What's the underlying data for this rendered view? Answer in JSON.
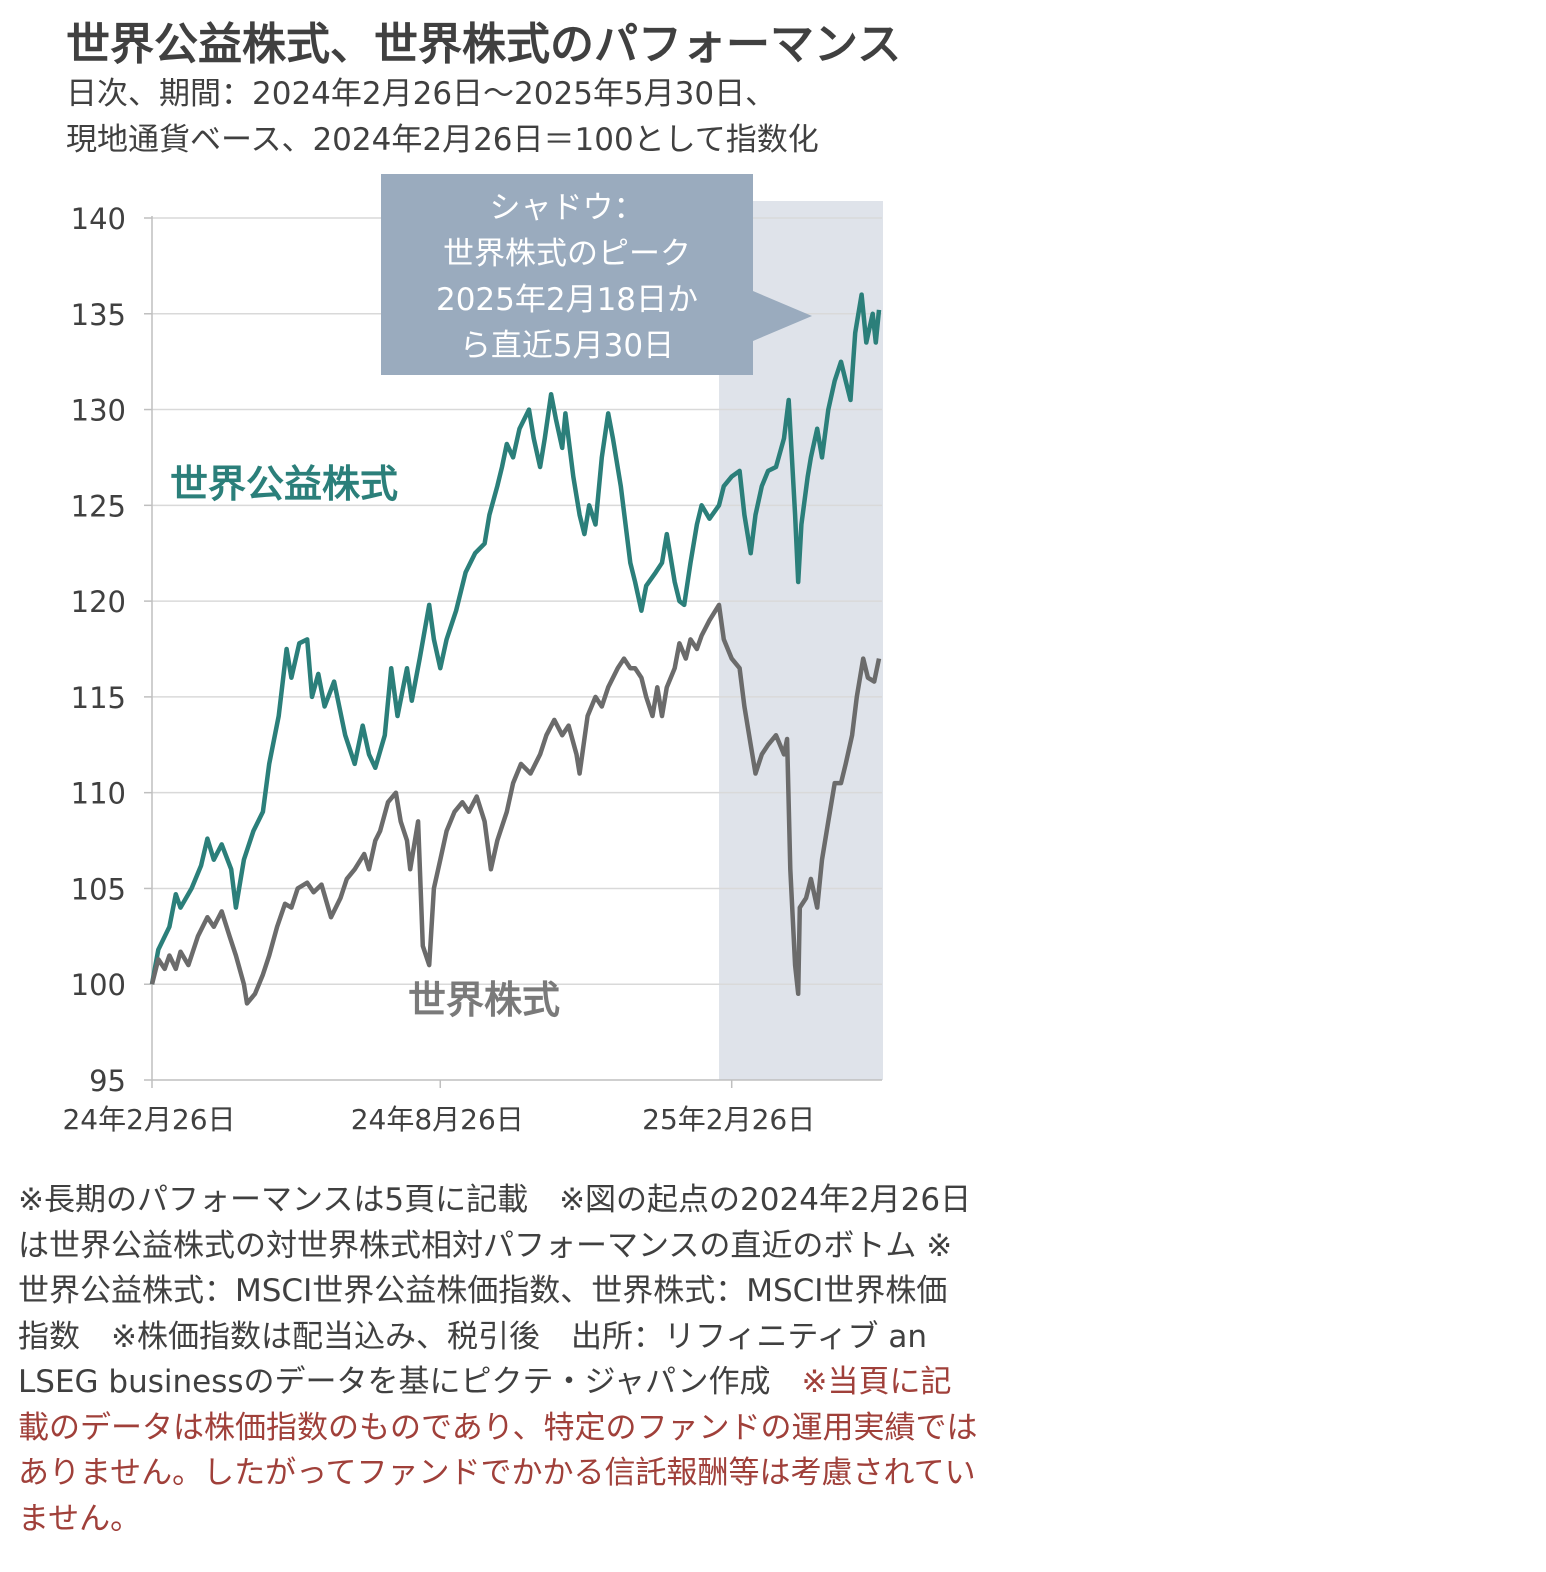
{
  "title": "世界公益株式、世界株式のパフォーマンス",
  "subtitle_line1": "日次、期間：2024年2月26日～2025年5月30日、",
  "subtitle_line2": "現地通貨ベース、2024年2月26日＝100として指数化",
  "shadow_callout": [
    "シャドウ：",
    "世界株式のピーク",
    "2025年2月18日か",
    "ら直近5月30日"
  ],
  "notes_text": "※長期のパフォーマンスは5頁に記載　※図の起点の2024年2月26日は世界公益株式の対世界株式相対パフォーマンスの直近のボトム ※世界公益株式：MSCI世界公益株価指数、世界株式：MSCI世界株価指数　※株価指数は配当込み、税引後　出所：リフィニティブ an LSEG businessのデータを基にピクテ・ジャパン作成　",
  "notes_red": "※当頁に記載のデータは株価指数のものであり、特定のファンドの運用実績ではありません。したがってファンドでかかる信託報酬等は考慮されていません。",
  "colors": {
    "utilities": "#2b7f7a",
    "world": "#6b6b6b",
    "shadow": "#dfe3ea",
    "callout": "#9aabbe",
    "grid": "#d9d9d9",
    "note_red": "#a0403a"
  },
  "chart_data": {
    "type": "line",
    "ylim": [
      95,
      140
    ],
    "yticks": [
      "140",
      "135",
      "130",
      "125",
      "120",
      "115",
      "110",
      "105",
      "100",
      "95"
    ],
    "xticks": [
      "24年2月26日",
      "24年8月26日",
      "25年2月26日"
    ],
    "shadow_range": [
      "2025-02-18",
      "2025-05-30"
    ],
    "series": [
      {
        "name": "世界公益株式",
        "points": [
          [
            "2024-02-26",
            100.0
          ],
          [
            "2024-03-01",
            101.8
          ],
          [
            "2024-03-08",
            103.0
          ],
          [
            "2024-03-12",
            104.7
          ],
          [
            "2024-03-15",
            104.0
          ],
          [
            "2024-03-22",
            105.0
          ],
          [
            "2024-03-28",
            106.2
          ],
          [
            "2024-04-01",
            107.6
          ],
          [
            "2024-04-05",
            106.5
          ],
          [
            "2024-04-10",
            107.3
          ],
          [
            "2024-04-16",
            106.0
          ],
          [
            "2024-04-19",
            104.0
          ],
          [
            "2024-04-24",
            106.5
          ],
          [
            "2024-04-30",
            108.0
          ],
          [
            "2024-05-06",
            109.0
          ],
          [
            "2024-05-10",
            111.5
          ],
          [
            "2024-05-16",
            114.0
          ],
          [
            "2024-05-21",
            117.5
          ],
          [
            "2024-05-24",
            116.0
          ],
          [
            "2024-05-29",
            117.8
          ],
          [
            "2024-06-03",
            118.0
          ],
          [
            "2024-06-06",
            115.0
          ],
          [
            "2024-06-10",
            116.2
          ],
          [
            "2024-06-14",
            114.5
          ],
          [
            "2024-06-20",
            115.8
          ],
          [
            "2024-06-27",
            113.0
          ],
          [
            "2024-07-03",
            111.5
          ],
          [
            "2024-07-08",
            113.5
          ],
          [
            "2024-07-12",
            112.0
          ],
          [
            "2024-07-16",
            111.3
          ],
          [
            "2024-07-22",
            113.0
          ],
          [
            "2024-07-26",
            116.5
          ],
          [
            "2024-07-30",
            114.0
          ],
          [
            "2024-08-05",
            116.5
          ],
          [
            "2024-08-08",
            114.8
          ],
          [
            "2024-08-13",
            117.0
          ],
          [
            "2024-08-19",
            119.8
          ],
          [
            "2024-08-22",
            118.0
          ],
          [
            "2024-08-26",
            116.5
          ],
          [
            "2024-08-30",
            118.0
          ],
          [
            "2024-09-05",
            119.5
          ],
          [
            "2024-09-11",
            121.5
          ],
          [
            "2024-09-17",
            122.5
          ],
          [
            "2024-09-23",
            123.0
          ],
          [
            "2024-09-26",
            124.5
          ],
          [
            "2024-10-01",
            126.0
          ],
          [
            "2024-10-04",
            127.0
          ],
          [
            "2024-10-07",
            128.2
          ],
          [
            "2024-10-11",
            127.5
          ],
          [
            "2024-10-15",
            129.0
          ],
          [
            "2024-10-21",
            130.0
          ],
          [
            "2024-10-24",
            128.5
          ],
          [
            "2024-10-28",
            127.0
          ],
          [
            "2024-10-31",
            128.5
          ],
          [
            "2024-11-04",
            130.8
          ],
          [
            "2024-11-07",
            129.5
          ],
          [
            "2024-11-11",
            128.0
          ],
          [
            "2024-11-13",
            129.8
          ],
          [
            "2024-11-18",
            126.5
          ],
          [
            "2024-11-22",
            124.5
          ],
          [
            "2024-11-25",
            123.5
          ],
          [
            "2024-11-28",
            125.0
          ],
          [
            "2024-12-02",
            124.0
          ],
          [
            "2024-12-06",
            127.5
          ],
          [
            "2024-12-10",
            129.8
          ],
          [
            "2024-12-13",
            128.5
          ],
          [
            "2024-12-18",
            126.0
          ],
          [
            "2024-12-24",
            122.0
          ],
          [
            "2024-12-27",
            121.0
          ],
          [
            "2024-12-31",
            119.5
          ],
          [
            "2025-01-03",
            120.8
          ],
          [
            "2025-01-09",
            121.5
          ],
          [
            "2025-01-13",
            122.0
          ],
          [
            "2025-01-16",
            123.5
          ],
          [
            "2025-01-21",
            121.0
          ],
          [
            "2025-01-24",
            120.0
          ],
          [
            "2025-01-27",
            119.8
          ],
          [
            "2025-01-31",
            122.0
          ],
          [
            "2025-02-04",
            124.0
          ],
          [
            "2025-02-07",
            125.0
          ],
          [
            "2025-02-12",
            124.3
          ],
          [
            "2025-02-18",
            125.0
          ],
          [
            "2025-02-21",
            126.0
          ],
          [
            "2025-02-26",
            126.5
          ],
          [
            "2025-03-03",
            126.8
          ],
          [
            "2025-03-06",
            124.5
          ],
          [
            "2025-03-10",
            122.5
          ],
          [
            "2025-03-13",
            124.5
          ],
          [
            "2025-03-17",
            126.0
          ],
          [
            "2025-03-21",
            126.8
          ],
          [
            "2025-03-26",
            127.0
          ],
          [
            "2025-03-31",
            128.5
          ],
          [
            "2025-04-03",
            130.5
          ],
          [
            "2025-04-07",
            124.5
          ],
          [
            "2025-04-09",
            121.0
          ],
          [
            "2025-04-11",
            124.0
          ],
          [
            "2025-04-15",
            126.5
          ],
          [
            "2025-04-17",
            127.5
          ],
          [
            "2025-04-21",
            129.0
          ],
          [
            "2025-04-24",
            127.5
          ],
          [
            "2025-04-28",
            130.0
          ],
          [
            "2025-05-02",
            131.5
          ],
          [
            "2025-05-06",
            132.5
          ],
          [
            "2025-05-09",
            131.5
          ],
          [
            "2025-05-12",
            130.5
          ],
          [
            "2025-05-15",
            134.0
          ],
          [
            "2025-05-19",
            136.0
          ],
          [
            "2025-05-22",
            133.5
          ],
          [
            "2025-05-26",
            135.0
          ],
          [
            "2025-05-28",
            133.5
          ],
          [
            "2025-05-30",
            135.2
          ]
        ]
      },
      {
        "name": "世界株式",
        "points": [
          [
            "2024-02-26",
            100.0
          ],
          [
            "2024-03-01",
            101.3
          ],
          [
            "2024-03-05",
            100.8
          ],
          [
            "2024-03-08",
            101.5
          ],
          [
            "2024-03-12",
            100.8
          ],
          [
            "2024-03-15",
            101.7
          ],
          [
            "2024-03-20",
            101.0
          ],
          [
            "2024-03-26",
            102.5
          ],
          [
            "2024-04-01",
            103.5
          ],
          [
            "2024-04-05",
            103.0
          ],
          [
            "2024-04-10",
            103.8
          ],
          [
            "2024-04-15",
            102.5
          ],
          [
            "2024-04-19",
            101.5
          ],
          [
            "2024-04-24",
            100.0
          ],
          [
            "2024-04-26",
            99.0
          ],
          [
            "2024-05-01",
            99.5
          ],
          [
            "2024-05-06",
            100.5
          ],
          [
            "2024-05-10",
            101.5
          ],
          [
            "2024-05-15",
            103.0
          ],
          [
            "2024-05-20",
            104.2
          ],
          [
            "2024-05-24",
            104.0
          ],
          [
            "2024-05-28",
            105.0
          ],
          [
            "2024-06-03",
            105.3
          ],
          [
            "2024-06-07",
            104.8
          ],
          [
            "2024-06-12",
            105.2
          ],
          [
            "2024-06-18",
            103.5
          ],
          [
            "2024-06-24",
            104.5
          ],
          [
            "2024-06-28",
            105.5
          ],
          [
            "2024-07-03",
            106.0
          ],
          [
            "2024-07-09",
            106.8
          ],
          [
            "2024-07-12",
            106.0
          ],
          [
            "2024-07-16",
            107.5
          ],
          [
            "2024-07-19",
            108.0
          ],
          [
            "2024-07-24",
            109.5
          ],
          [
            "2024-07-29",
            110.0
          ],
          [
            "2024-08-01",
            108.5
          ],
          [
            "2024-08-05",
            107.5
          ],
          [
            "2024-08-07",
            106.0
          ],
          [
            "2024-08-12",
            108.5
          ],
          [
            "2024-08-15",
            102.0
          ],
          [
            "2024-08-19",
            101.0
          ],
          [
            "2024-08-22",
            105.0
          ],
          [
            "2024-08-26",
            106.5
          ],
          [
            "2024-08-30",
            108.0
          ],
          [
            "2024-09-04",
            109.0
          ],
          [
            "2024-09-09",
            109.5
          ],
          [
            "2024-09-13",
            109.0
          ],
          [
            "2024-09-18",
            109.8
          ],
          [
            "2024-09-23",
            108.5
          ],
          [
            "2024-09-27",
            106.0
          ],
          [
            "2024-10-01",
            107.5
          ],
          [
            "2024-10-07",
            109.0
          ],
          [
            "2024-10-11",
            110.5
          ],
          [
            "2024-10-16",
            111.5
          ],
          [
            "2024-10-22",
            111.0
          ],
          [
            "2024-10-28",
            112.0
          ],
          [
            "2024-11-01",
            113.0
          ],
          [
            "2024-11-06",
            113.8
          ],
          [
            "2024-11-11",
            113.0
          ],
          [
            "2024-11-15",
            113.5
          ],
          [
            "2024-11-20",
            112.0
          ],
          [
            "2024-11-22",
            111.0
          ],
          [
            "2024-11-27",
            114.0
          ],
          [
            "2024-12-02",
            115.0
          ],
          [
            "2024-12-06",
            114.5
          ],
          [
            "2024-12-10",
            115.5
          ],
          [
            "2024-12-16",
            116.5
          ],
          [
            "2024-12-20",
            117.0
          ],
          [
            "2024-12-24",
            116.5
          ],
          [
            "2024-12-27",
            116.5
          ],
          [
            "2024-12-31",
            116.0
          ],
          [
            "2025-01-03",
            115.0
          ],
          [
            "2025-01-07",
            114.0
          ],
          [
            "2025-01-10",
            115.5
          ],
          [
            "2025-01-13",
            114.0
          ],
          [
            "2025-01-16",
            115.5
          ],
          [
            "2025-01-21",
            116.5
          ],
          [
            "2025-01-24",
            117.8
          ],
          [
            "2025-01-28",
            117.0
          ],
          [
            "2025-01-31",
            118.0
          ],
          [
            "2025-02-04",
            117.5
          ],
          [
            "2025-02-07",
            118.2
          ],
          [
            "2025-02-12",
            119.0
          ],
          [
            "2025-02-18",
            119.8
          ],
          [
            "2025-02-21",
            118.0
          ],
          [
            "2025-02-26",
            117.0
          ],
          [
            "2025-03-03",
            116.5
          ],
          [
            "2025-03-06",
            114.5
          ],
          [
            "2025-03-10",
            112.5
          ],
          [
            "2025-03-13",
            111.0
          ],
          [
            "2025-03-17",
            112.0
          ],
          [
            "2025-03-21",
            112.5
          ],
          [
            "2025-03-26",
            113.0
          ],
          [
            "2025-03-31",
            112.0
          ],
          [
            "2025-04-02",
            112.8
          ],
          [
            "2025-04-04",
            106.0
          ],
          [
            "2025-04-07",
            101.0
          ],
          [
            "2025-04-09",
            99.5
          ],
          [
            "2025-04-10",
            104.0
          ],
          [
            "2025-04-14",
            104.5
          ],
          [
            "2025-04-17",
            105.5
          ],
          [
            "2025-04-21",
            104.0
          ],
          [
            "2025-04-24",
            106.5
          ],
          [
            "2025-04-28",
            108.5
          ],
          [
            "2025-05-02",
            110.5
          ],
          [
            "2025-05-06",
            110.5
          ],
          [
            "2025-05-09",
            111.5
          ],
          [
            "2025-05-13",
            113.0
          ],
          [
            "2025-05-16",
            115.0
          ],
          [
            "2025-05-20",
            117.0
          ],
          [
            "2025-05-23",
            116.0
          ],
          [
            "2025-05-27",
            115.8
          ],
          [
            "2025-05-30",
            117.0
          ]
        ]
      }
    ]
  }
}
